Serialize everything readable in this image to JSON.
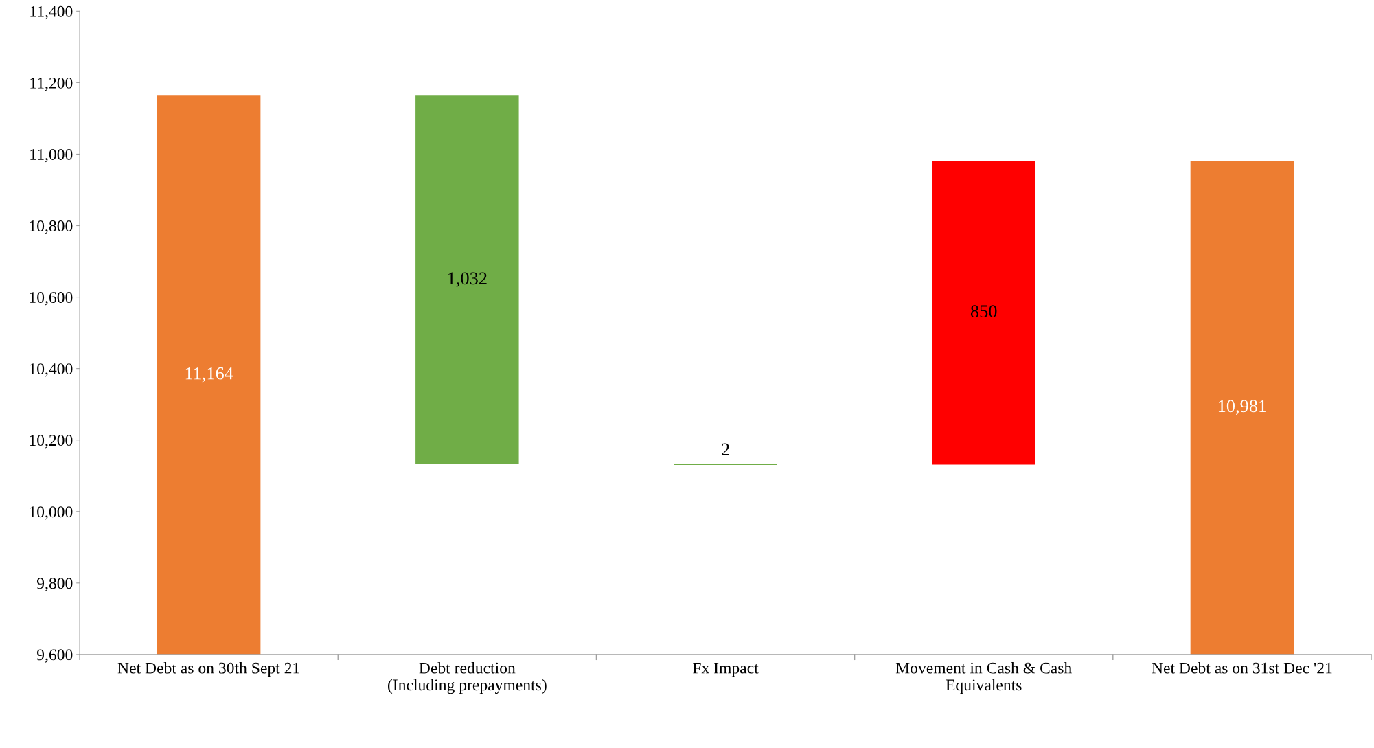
{
  "chart_data": {
    "type": "bar",
    "categories": [
      "Net Debt as on 30th Sept 21",
      "Debt reduction\n(Including prepayments)",
      "Fx Impact",
      "Movement in Cash & Cash\nEquivalents",
      "Net Debt as on 31st Dec '21"
    ],
    "values": [
      11164,
      1032,
      2,
      850,
      10981
    ],
    "base": [
      0,
      10132,
      10130,
      10131,
      0
    ],
    "colors": [
      "#ed7d31",
      "#70ad47",
      "#70ad47",
      "#ff0000",
      "#ed7d31"
    ],
    "value_labels": [
      "11,164",
      "1,032",
      "2",
      "850",
      "10,981"
    ],
    "ylim": [
      9600,
      11400
    ],
    "yticks": [
      {
        "value": 9600,
        "label": "9,600"
      },
      {
        "value": 9800,
        "label": "9,800"
      },
      {
        "value": 10000,
        "label": "10,000"
      },
      {
        "value": 10200,
        "label": "10,200"
      },
      {
        "value": 10400,
        "label": "10,400"
      },
      {
        "value": 10600,
        "label": "10,600"
      },
      {
        "value": 10800,
        "label": "10,800"
      },
      {
        "value": 11000,
        "label": "11,000"
      },
      {
        "value": 11200,
        "label": "11,200"
      },
      {
        "value": 11400,
        "label": "11,400"
      }
    ],
    "grid": false,
    "legend": false
  }
}
